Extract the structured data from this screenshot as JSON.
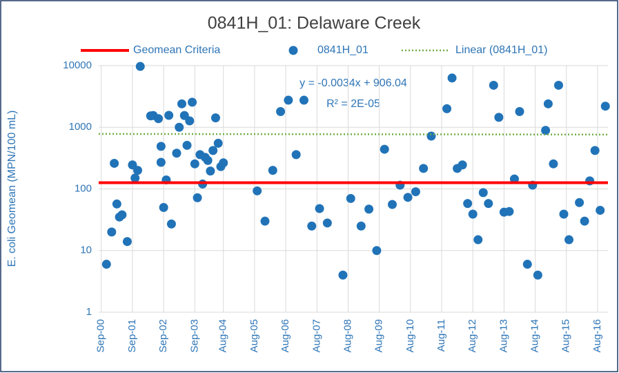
{
  "chart_data": {
    "type": "scatter",
    "title": "0841H_01: Delaware Creek",
    "y_label": "E. coli Geomean (MPN/100 mL)",
    "log_y": true,
    "grid": true,
    "ylim": [
      1,
      10000
    ],
    "yticks": [
      1,
      10,
      100,
      1000,
      10000
    ],
    "xlim": [
      "2000-08",
      "2016-12"
    ],
    "xticks": [
      {
        "value": "2000-09",
        "label": "Sep-00"
      },
      {
        "value": "2001-09",
        "label": "Sep-01"
      },
      {
        "value": "2002-09",
        "label": "Sep-02"
      },
      {
        "value": "2003-09",
        "label": "Sep-03"
      },
      {
        "value": "2004-08",
        "label": "Aug-04"
      },
      {
        "value": "2005-08",
        "label": "Aug-05"
      },
      {
        "value": "2006-08",
        "label": "Aug-06"
      },
      {
        "value": "2007-08",
        "label": "Aug-07"
      },
      {
        "value": "2008-08",
        "label": "Aug-08"
      },
      {
        "value": "2009-08",
        "label": "Aug-09"
      },
      {
        "value": "2010-08",
        "label": "Aug-10"
      },
      {
        "value": "2011-08",
        "label": "Aug-11"
      },
      {
        "value": "2012-08",
        "label": "Aug-12"
      },
      {
        "value": "2013-08",
        "label": "Aug-13"
      },
      {
        "value": "2014-08",
        "label": "Aug-14"
      },
      {
        "value": "2015-08",
        "label": "Aug-15"
      },
      {
        "value": "2016-08",
        "label": "Aug-16"
      }
    ],
    "annotations": [
      "y = -0.0034x + 906.04",
      "R² = 2E-05"
    ],
    "series": [
      {
        "name": "Geomean Criteria",
        "kind": "line",
        "color": "#ff0000",
        "dash": "solid",
        "x": [
          "2000-08",
          "2016-12"
        ],
        "values": [
          126,
          126
        ]
      },
      {
        "name": "0841H_01",
        "kind": "marker",
        "color": "#2173b8",
        "x": [
          "2000-11",
          "2001-01",
          "2001-02",
          "2001-03",
          "2001-04",
          "2001-05",
          "2001-07",
          "2001-09",
          "2001-10",
          "2001-11",
          "2001-12",
          "2002-04",
          "2002-05",
          "2002-07",
          "2002-08",
          "2002-08",
          "2002-09",
          "2002-10",
          "2002-11",
          "2002-12",
          "2003-02",
          "2003-03",
          "2003-04",
          "2003-05",
          "2003-06",
          "2003-07",
          "2003-08",
          "2003-09",
          "2003-10",
          "2003-11",
          "2003-12",
          "2004-01",
          "2004-02",
          "2004-03",
          "2004-04",
          "2004-05",
          "2004-06",
          "2004-07",
          "2004-08",
          "2005-09",
          "2005-12",
          "2006-03",
          "2006-06",
          "2006-09",
          "2006-12",
          "2007-03",
          "2007-06",
          "2007-09",
          "2007-12",
          "2008-06",
          "2008-09",
          "2009-01",
          "2009-04",
          "2009-07",
          "2009-10",
          "2010-01",
          "2010-04",
          "2010-07",
          "2010-10",
          "2011-01",
          "2011-04",
          "2011-10",
          "2011-12",
          "2012-02",
          "2012-04",
          "2012-06",
          "2012-08",
          "2012-10",
          "2012-12",
          "2013-02",
          "2013-04",
          "2013-06",
          "2013-08",
          "2013-10",
          "2013-12",
          "2014-02",
          "2014-05",
          "2014-07",
          "2014-09",
          "2014-12",
          "2015-01",
          "2015-03",
          "2015-05",
          "2015-07",
          "2015-09",
          "2016-01",
          "2016-03",
          "2016-05",
          "2016-07",
          "2016-09",
          "2016-11"
        ],
        "values": [
          6,
          20,
          260,
          57,
          35,
          38,
          14,
          245,
          150,
          200,
          9700,
          1530,
          1550,
          1380,
          490,
          270,
          50,
          140,
          1560,
          27,
          380,
          1000,
          2400,
          1550,
          510,
          1270,
          2550,
          255,
          72,
          360,
          120,
          325,
          290,
          195,
          420,
          1420,
          550,
          230,
          265,
          93,
          30,
          200,
          1800,
          2750,
          360,
          2750,
          25,
          48,
          28,
          4,
          70,
          25,
          47,
          10,
          440,
          56,
          115,
          73,
          90,
          215,
          720,
          2000,
          6300,
          215,
          245,
          58,
          39,
          15,
          87,
          58,
          4800,
          1450,
          42,
          43,
          145,
          1800,
          6,
          115,
          4,
          890,
          2400,
          255,
          4800,
          39,
          15,
          60,
          30,
          135,
          420,
          45,
          2200
        ]
      },
      {
        "name": "Linear (0841H_01)",
        "kind": "line",
        "color": "#70ad47",
        "dash": "dotted",
        "x": [
          "2000-08",
          "2016-12"
        ],
        "values": [
          780,
          761
        ]
      }
    ]
  }
}
